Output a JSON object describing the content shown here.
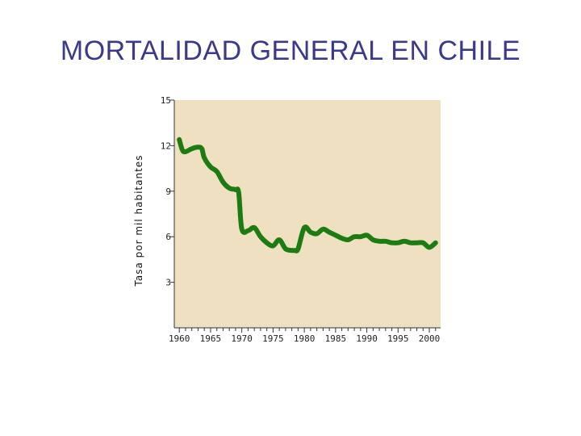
{
  "title": "MORTALIDAD GENERAL EN CHILE",
  "colors": {
    "plot_background": "#eee0c0",
    "line": "#1c7c12",
    "title": "#3a3a8c"
  },
  "chart_data": {
    "type": "line",
    "title": "MORTALIDAD GENERAL EN CHILE",
    "xlabel": "",
    "ylabel": "Tasa por mil habitantes",
    "xlim": [
      1959.2,
      2001.8
    ],
    "ylim": [
      0,
      15
    ],
    "y_ticks": [
      3,
      6,
      9,
      12,
      15
    ],
    "x_tick_labels": [
      1960,
      1965,
      1970,
      1975,
      1980,
      1985,
      1990,
      1995,
      2000
    ],
    "grid": false,
    "series": [
      {
        "x": [
          1960,
          1960.5,
          1961,
          1962,
          1963,
          1963.6,
          1964,
          1965,
          1966,
          1967,
          1968,
          1969,
          1969.5,
          1970,
          1971,
          1972,
          1973,
          1974,
          1975,
          1976,
          1977,
          1978,
          1978.5,
          1979,
          1980,
          1981,
          1982,
          1983,
          1984,
          1985,
          1986,
          1987,
          1988,
          1989,
          1990,
          1991,
          1992,
          1993,
          1994,
          1995,
          1996,
          1997,
          1998,
          1999,
          2000,
          2001
        ],
        "values": [
          12.4,
          11.7,
          11.6,
          11.8,
          11.9,
          11.8,
          11.2,
          10.6,
          10.3,
          9.6,
          9.2,
          9.1,
          8.9,
          6.5,
          6.4,
          6.6,
          6.0,
          5.6,
          5.4,
          5.8,
          5.2,
          5.1,
          5.1,
          5.2,
          6.6,
          6.3,
          6.2,
          6.5,
          6.3,
          6.1,
          5.9,
          5.8,
          6.0,
          6.0,
          6.1,
          5.8,
          5.7,
          5.7,
          5.6,
          5.6,
          5.7,
          5.6,
          5.6,
          5.6,
          5.3,
          5.6
        ]
      }
    ]
  }
}
